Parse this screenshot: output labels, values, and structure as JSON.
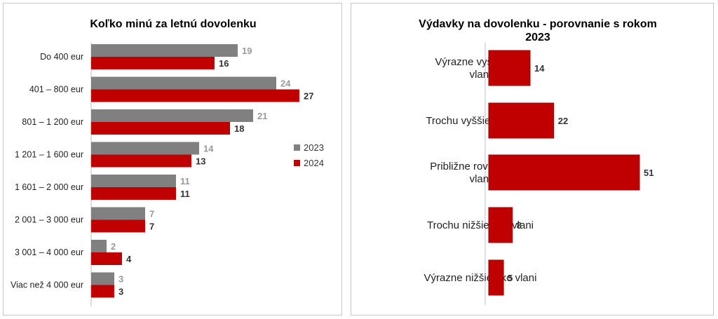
{
  "chart_data": [
    {
      "type": "bar",
      "orientation": "horizontal",
      "title": "Koľko minú za letnú dovolenku",
      "categories": [
        "Do 400 eur",
        "401 – 800 eur",
        "801 – 1 200 eur",
        "1 201 – 1 600 eur",
        "1 601 – 2 000 eur",
        "2 001 – 3 000 eur",
        "3 001 – 4 000 eur",
        "Viac než 4 000 eur"
      ],
      "series": [
        {
          "name": "2023",
          "color": "#808080",
          "values": [
            19,
            24,
            21,
            14,
            11,
            7,
            2,
            3
          ]
        },
        {
          "name": "2024",
          "color": "#c00000",
          "values": [
            16,
            27,
            18,
            13,
            11,
            7,
            4,
            3
          ]
        }
      ],
      "xlim": [
        0,
        30
      ],
      "legend": "right"
    },
    {
      "type": "bar",
      "orientation": "horizontal",
      "title_lines": [
        "Výdavky na dovolenku - porovnanie s rokom",
        "2023"
      ],
      "categories": [
        [
          "Výrazne vyššie ako",
          "vlani"
        ],
        [
          "Trochu vyššie ako vlani"
        ],
        [
          "Približne rovnaké ako",
          "vlani"
        ],
        [
          "Trochu nižšie ako vlani"
        ],
        [
          "Výrazne nižšie ako vlani"
        ]
      ],
      "series": [
        {
          "name": "",
          "color": "#c00000",
          "values": [
            14,
            22,
            51,
            8,
            5
          ]
        }
      ],
      "xlim": [
        0,
        55
      ]
    }
  ]
}
